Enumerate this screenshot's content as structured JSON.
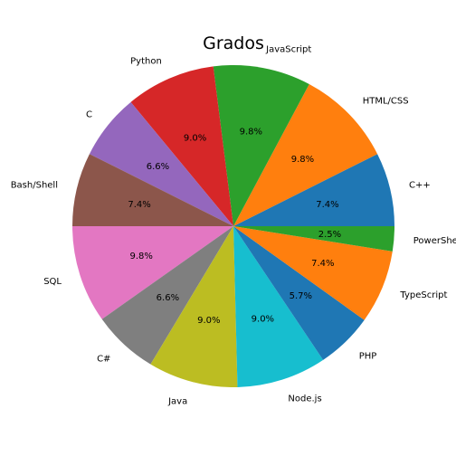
{
  "chart_data": {
    "type": "pie",
    "title": "Grados",
    "start_angle_deg": 0,
    "direction": "counterclockwise",
    "slices": [
      {
        "label": "C++",
        "value": 7.4,
        "pct_label": "7.4%",
        "color": "#1f77b4"
      },
      {
        "label": "HTML/CSS",
        "value": 9.8,
        "pct_label": "9.8%",
        "color": "#ff7f0e"
      },
      {
        "label": "JavaScript",
        "value": 9.8,
        "pct_label": "9.8%",
        "color": "#2ca02c"
      },
      {
        "label": "Python",
        "value": 9.0,
        "pct_label": "9.0%",
        "color": "#d62728"
      },
      {
        "label": "C",
        "value": 6.6,
        "pct_label": "6.6%",
        "color": "#9467bd"
      },
      {
        "label": "Bash/Shell",
        "value": 7.4,
        "pct_label": "7.4%",
        "color": "#8c564b"
      },
      {
        "label": "SQL",
        "value": 9.8,
        "pct_label": "9.8%",
        "color": "#e377c2"
      },
      {
        "label": "C#",
        "value": 6.6,
        "pct_label": "6.6%",
        "color": "#7f7f7f"
      },
      {
        "label": "Java",
        "value": 9.0,
        "pct_label": "9.0%",
        "color": "#bcbd22"
      },
      {
        "label": "Node.js",
        "value": 9.0,
        "pct_label": "9.0%",
        "color": "#17becf"
      },
      {
        "label": "PHP",
        "value": 5.7,
        "pct_label": "5.7%",
        "color": "#1f77b4"
      },
      {
        "label": "TypeScript",
        "value": 7.4,
        "pct_label": "7.4%",
        "color": "#ff7f0e"
      },
      {
        "label": "PowerShell",
        "value": 2.5,
        "pct_label": "2.5%",
        "color": "#2ca02c"
      }
    ]
  }
}
